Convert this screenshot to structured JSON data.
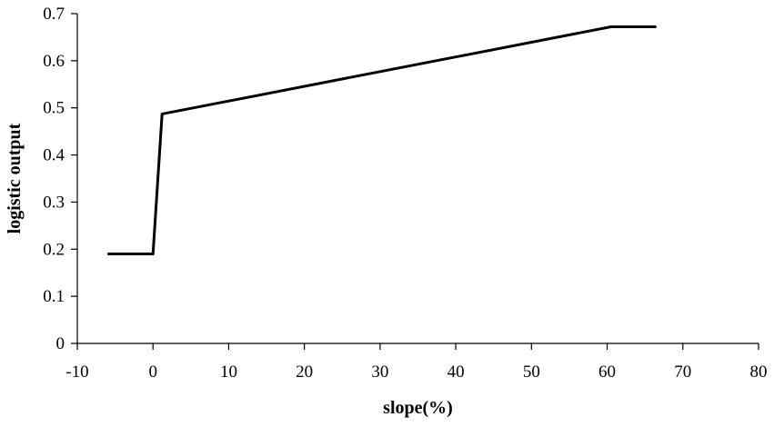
{
  "chart_data": {
    "type": "line",
    "title": "",
    "xlabel": "slope(%)",
    "ylabel": "logistic output",
    "xlim": [
      -10,
      80
    ],
    "ylim": [
      0,
      0.7
    ],
    "xticks": [
      -10,
      0,
      10,
      20,
      30,
      40,
      50,
      60,
      70,
      80
    ],
    "yticks": [
      0,
      0.1,
      0.2,
      0.3,
      0.4,
      0.5,
      0.6,
      0.7
    ],
    "xtick_labels": [
      "-10",
      "0",
      "10",
      "20",
      "30",
      "40",
      "50",
      "60",
      "70",
      "80"
    ],
    "ytick_labels": [
      "0",
      "0.1",
      "0.2",
      "0.3",
      "0.4",
      "0.5",
      "0.6",
      "0.7"
    ],
    "grid": false,
    "legend": "none",
    "series": [
      {
        "color": "#000000",
        "x": [
          -6,
          0,
          1.2,
          60.5,
          66.5
        ],
        "y": [
          0.19,
          0.19,
          0.487,
          0.672,
          0.672
        ]
      }
    ]
  }
}
